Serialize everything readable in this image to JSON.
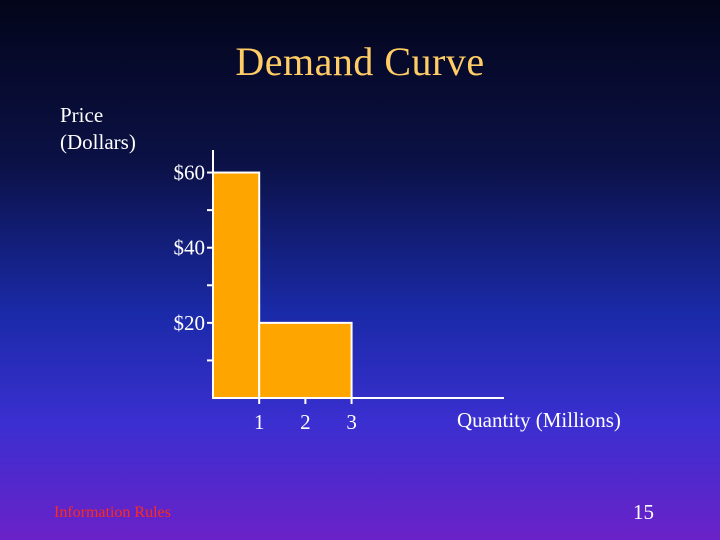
{
  "slide": {
    "title": "Demand Curve",
    "footer_left": "Information Rules",
    "page_number": "15",
    "background_top": "#03051a",
    "background_bottom": "#6a22c8"
  },
  "chart_data": {
    "type": "bar",
    "title": "Demand Curve",
    "ylabel_line1": "Price",
    "ylabel_line2": "(Dollars)",
    "xlabel": "Quantity (Millions)",
    "y_ticks": [
      {
        "value": 60,
        "label": "$60"
      },
      {
        "value": 50,
        "label": ""
      },
      {
        "value": 40,
        "label": "$40"
      },
      {
        "value": 30,
        "label": ""
      },
      {
        "value": 20,
        "label": "$20"
      },
      {
        "value": 10,
        "label": ""
      }
    ],
    "x_ticks": [
      {
        "value": 1,
        "label": "1"
      },
      {
        "value": 2,
        "label": "2"
      },
      {
        "value": 3,
        "label": "3"
      }
    ],
    "bars": [
      {
        "x0": 0,
        "x1": 1,
        "value": 60
      },
      {
        "x0": 1,
        "x1": 3,
        "value": 20
      }
    ],
    "ylim": [
      0,
      66
    ],
    "xlim": [
      0,
      6.3
    ],
    "bar_fill": "#ffa500",
    "bar_stroke": "#ffffff",
    "axis_color": "#ffffff",
    "grid": false
  }
}
